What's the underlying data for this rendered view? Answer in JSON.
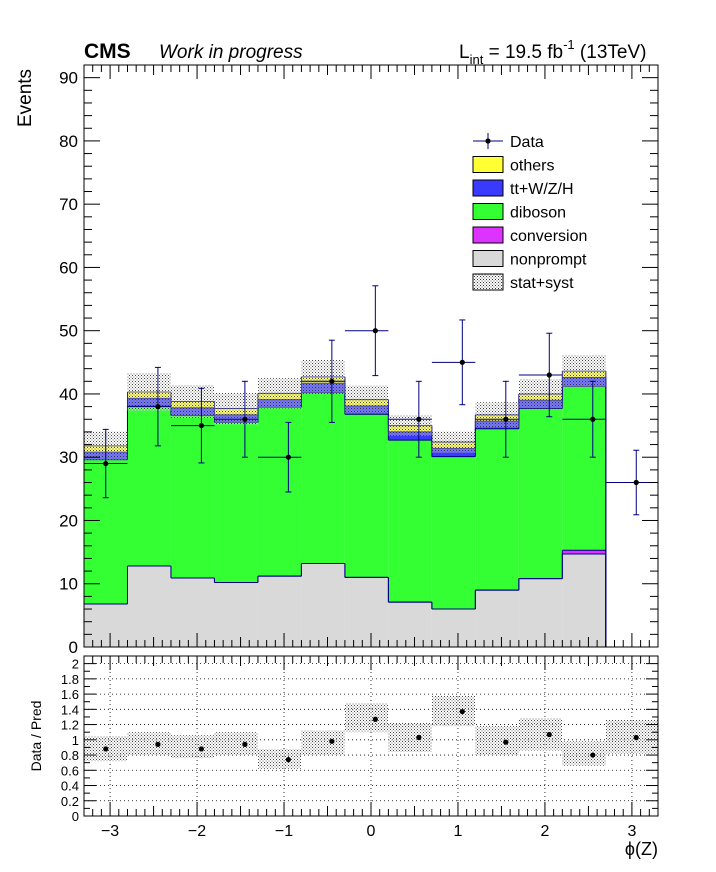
{
  "header": {
    "experiment": "CMS",
    "status": "Work in progress",
    "lumi_prefix": "L",
    "lumi_sub": "int",
    "lumi_value": " = 19.5 fb",
    "lumi_sup": "-1",
    "lumi_suffix": " (13TeV)"
  },
  "chart_data": [
    {
      "type": "stacked-histogram",
      "ylabel": "Events",
      "ylim": [
        0,
        92
      ],
      "xlim": [
        -3.3,
        3.3
      ],
      "yticks": [
        0,
        10,
        20,
        30,
        40,
        50,
        60,
        70,
        80,
        90
      ],
      "grid": false,
      "legend_position": "top-right",
      "bin_edges": [
        -3.3,
        -2.8,
        -2.3,
        -1.8,
        -1.3,
        -0.8,
        -0.3,
        0.2,
        0.7,
        1.2,
        1.7,
        2.2,
        2.7,
        3.3
      ],
      "stack": [
        {
          "name": "nonprompt",
          "color": "#d9d9d9",
          "values": [
            6.8,
            12.8,
            10.9,
            10.2,
            11.2,
            13.2,
            11.0,
            7.1,
            6.0,
            9.0,
            10.8,
            14.7,
            0
          ]
        },
        {
          "name": "conversion",
          "color": "#dd33ff",
          "values": [
            0,
            0,
            0,
            0,
            0,
            0,
            0,
            0,
            0,
            0,
            0,
            0.6,
            0
          ]
        },
        {
          "name": "diboson",
          "color": "#33ff33",
          "values": [
            22.8,
            25.3,
            25.7,
            25.3,
            26.7,
            27.0,
            25.8,
            25.6,
            24.1,
            25.5,
            26.9,
            25.9,
            0
          ]
        },
        {
          "name": "tt+W/Z/H",
          "color": "#3a3aff",
          "values": [
            1.2,
            1.2,
            1.2,
            1.2,
            1.2,
            1.5,
            1.3,
            1.3,
            1.3,
            1.2,
            1.3,
            1.4,
            0
          ]
        },
        {
          "name": "others",
          "color": "#ffff33",
          "values": [
            1.0,
            1.0,
            1.0,
            1.0,
            1.0,
            1.0,
            1.0,
            1.0,
            1.0,
            1.0,
            1.0,
            1.0,
            0
          ]
        }
      ],
      "uncertainty": {
        "name": "stat+syst",
        "half_width": [
          2.3,
          3.0,
          2.6,
          2.5,
          2.4,
          2.7,
          2.2,
          1.6,
          1.7,
          2.0,
          2.3,
          2.5,
          0
        ]
      },
      "data": {
        "name": "Data",
        "x": [
          -3.05,
          -2.45,
          -1.95,
          -1.45,
          -0.95,
          -0.45,
          0.05,
          0.55,
          1.05,
          1.55,
          2.05,
          2.55,
          3.05
        ],
        "y": [
          29,
          38,
          35,
          36,
          30,
          42,
          50,
          36,
          45,
          36,
          43,
          36,
          26
        ],
        "err": [
          5.4,
          6.2,
          5.9,
          6.0,
          5.5,
          6.5,
          7.1,
          6.0,
          6.7,
          6.0,
          6.6,
          6.0,
          5.1
        ]
      }
    },
    {
      "type": "ratio",
      "ylabel": "Data / Pred",
      "xlabel": "ϕ(Z)",
      "ylim": [
        0,
        2.1
      ],
      "xlim": [
        -3.3,
        3.3
      ],
      "yticks": [
        "0",
        "0.2",
        "0.4",
        "0.6",
        "0.8",
        "1",
        "1.2",
        "1.4",
        "1.6",
        "1.8",
        "2"
      ],
      "xticks": [
        "−3",
        "−2",
        "−1",
        "0",
        "1",
        "2",
        "3"
      ],
      "grid": true,
      "bin_edges": [
        -3.3,
        -2.8,
        -2.3,
        -1.8,
        -1.3,
        -0.8,
        -0.3,
        0.2,
        0.7,
        1.2,
        1.7,
        2.2,
        2.7,
        3.3
      ],
      "band_low": [
        0.72,
        0.8,
        0.76,
        0.8,
        0.62,
        0.8,
        1.1,
        0.84,
        1.18,
        0.8,
        0.86,
        0.66,
        0.82
      ],
      "band_high": [
        1.05,
        1.1,
        1.06,
        1.1,
        0.88,
        1.12,
        1.48,
        1.22,
        1.58,
        1.18,
        1.28,
        0.98,
        1.26
      ],
      "x": [
        -3.05,
        -2.45,
        -1.95,
        -1.45,
        -0.95,
        -0.45,
        0.05,
        0.55,
        1.05,
        1.55,
        2.05,
        2.55,
        3.05
      ],
      "y": [
        0.88,
        0.94,
        0.88,
        0.94,
        0.74,
        0.98,
        1.27,
        1.03,
        1.37,
        0.97,
        1.07,
        0.8,
        1.03
      ]
    }
  ]
}
